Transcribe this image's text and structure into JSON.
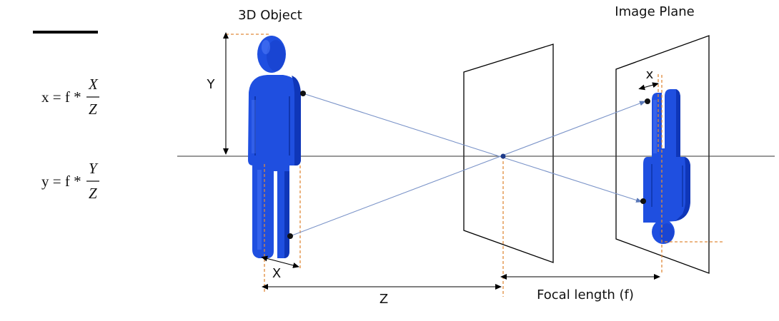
{
  "labels": {
    "object_title": "3D Object",
    "image_title": "Image Plane",
    "Y": "Y",
    "X": "X",
    "x": "x",
    "Z": "Z",
    "focal": "Focal length (f)"
  },
  "formulas": {
    "x_lhs": "x = f *",
    "x_num": "X",
    "x_den": "Z",
    "y_lhs": "y = f *",
    "y_num": "Y",
    "y_den": "Z"
  },
  "colors": {
    "figure": "#1f4fe0",
    "figure_shade": "#0f36b8",
    "figure_highlight": "#5c86ff",
    "guide_dashed": "#e08a3a",
    "ray": "#7a93c8",
    "line": "#000000"
  }
}
